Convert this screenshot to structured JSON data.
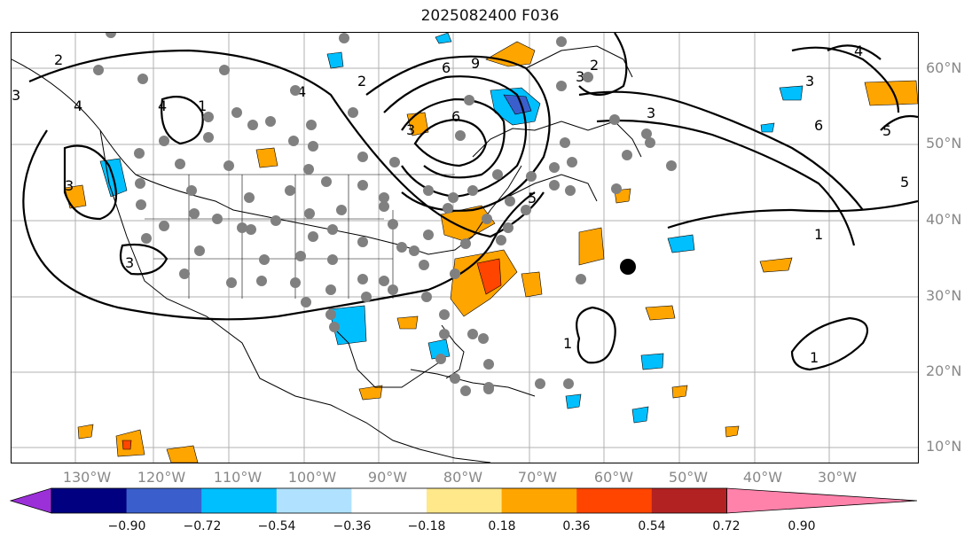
{
  "title": "2025082400 F036",
  "lat_labels": [
    "60°N",
    "50°N",
    "40°N",
    "30°N",
    "20°N",
    "10°N"
  ],
  "lon_labels": [
    "130°W",
    "120°W",
    "110°W",
    "100°W",
    "90°W",
    "80°W",
    "70°W",
    "60°W",
    "50°W",
    "40°W",
    "30°W"
  ],
  "contour_labels": [
    "2",
    "3",
    "4",
    "4",
    "3",
    "1",
    "3",
    "2",
    "3",
    "4",
    "5",
    "6",
    "9",
    "3",
    "6",
    "2",
    "3",
    "4",
    "3",
    "6",
    "5",
    "5",
    "1",
    "1",
    "1"
  ],
  "colorbar": {
    "ticks": [
      "−0.90",
      "−0.72",
      "−0.54",
      "−0.36",
      "−0.18",
      "0.18",
      "0.36",
      "0.54",
      "0.72",
      "0.90"
    ],
    "colors": [
      "#9b30d9",
      "#000080",
      "#3a5fcd",
      "#00bfff",
      "#b0e2ff",
      "#ffffff",
      "#ffe88a",
      "#ffa500",
      "#ff4500",
      "#b22222",
      "#ff82ab"
    ]
  },
  "colors": {
    "contour": "#000000",
    "station": "#808080",
    "marker": "#000000",
    "grid": "#b0b0b0"
  }
}
